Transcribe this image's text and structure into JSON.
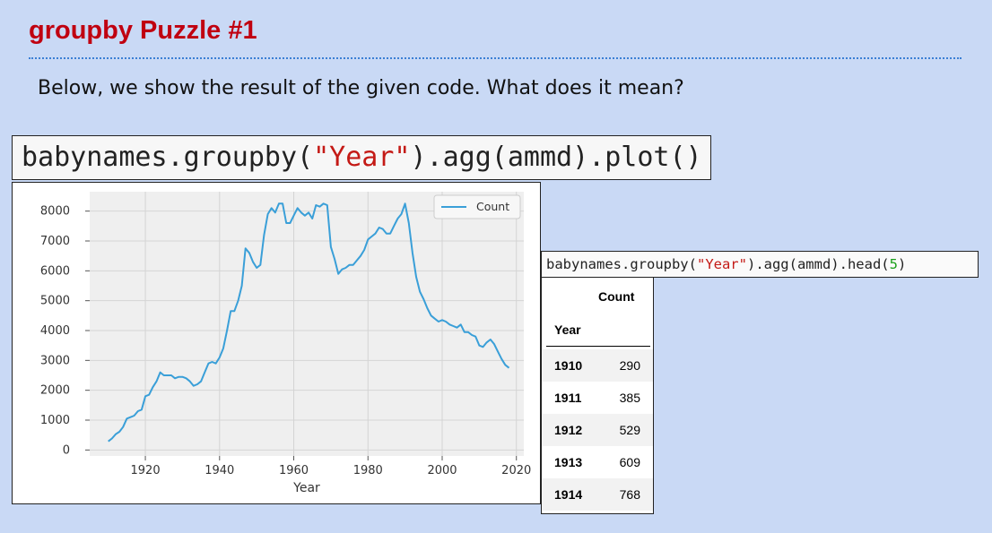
{
  "slide": {
    "title": "groupby Puzzle #1",
    "subtitle": "Below, we show the result of the given code. What does it mean?"
  },
  "code_plot": {
    "prefix": "babynames.groupby(",
    "arg": "\"Year\"",
    "suffix": ").agg(ammd).plot()"
  },
  "code_head": {
    "prefix": "babynames.groupby(",
    "arg": "\"Year\"",
    "middle": ").agg(ammd).head(",
    "num": "5",
    "suffix": ")"
  },
  "table": {
    "col_header": "Count",
    "index_header": "Year",
    "rows": [
      {
        "year": "1910",
        "count": "290"
      },
      {
        "year": "1911",
        "count": "385"
      },
      {
        "year": "1912",
        "count": "529"
      },
      {
        "year": "1913",
        "count": "609"
      },
      {
        "year": "1914",
        "count": "768"
      }
    ]
  },
  "chart_data": {
    "type": "line",
    "title": "",
    "xlabel": "Year",
    "ylabel": "",
    "xlim": [
      1905,
      2022
    ],
    "ylim": [
      -200,
      8650
    ],
    "xticks": [
      1920,
      1940,
      1960,
      1980,
      2000,
      2020
    ],
    "yticks": [
      0,
      1000,
      2000,
      3000,
      4000,
      5000,
      6000,
      7000,
      8000
    ],
    "grid": true,
    "legend_placement": "top-right",
    "series_color": "#3a9fd8",
    "series": [
      {
        "name": "Count",
        "x": [
          1910,
          1911,
          1912,
          1913,
          1914,
          1915,
          1916,
          1917,
          1918,
          1919,
          1920,
          1921,
          1922,
          1923,
          1924,
          1925,
          1926,
          1927,
          1928,
          1929,
          1930,
          1931,
          1932,
          1933,
          1934,
          1935,
          1936,
          1937,
          1938,
          1939,
          1940,
          1941,
          1942,
          1943,
          1944,
          1945,
          1946,
          1947,
          1948,
          1949,
          1950,
          1951,
          1952,
          1953,
          1954,
          1955,
          1956,
          1957,
          1958,
          1959,
          1960,
          1961,
          1962,
          1963,
          1964,
          1965,
          1966,
          1967,
          1968,
          1969,
          1970,
          1971,
          1972,
          1973,
          1974,
          1975,
          1976,
          1977,
          1978,
          1979,
          1980,
          1981,
          1982,
          1983,
          1984,
          1985,
          1986,
          1987,
          1988,
          1989,
          1990,
          1991,
          1992,
          1993,
          1994,
          1995,
          1996,
          1997,
          1998,
          1999,
          2000,
          2001,
          2002,
          2003,
          2004,
          2005,
          2006,
          2007,
          2008,
          2009,
          2010,
          2011,
          2012,
          2013,
          2014,
          2015,
          2016,
          2017,
          2018
        ],
        "values": [
          290,
          385,
          529,
          609,
          768,
          1050,
          1100,
          1150,
          1300,
          1350,
          1800,
          1850,
          2100,
          2300,
          2600,
          2500,
          2500,
          2500,
          2400,
          2450,
          2450,
          2400,
          2300,
          2150,
          2200,
          2300,
          2600,
          2900,
          2950,
          2900,
          3100,
          3400,
          4000,
          4650,
          4650,
          5000,
          5500,
          6750,
          6600,
          6300,
          6100,
          6200,
          7200,
          7900,
          8100,
          7950,
          8250,
          8250,
          7600,
          7600,
          7850,
          8100,
          7950,
          7850,
          7950,
          7750,
          8200,
          8150,
          8250,
          8200,
          6800,
          6400,
          5900,
          6050,
          6100,
          6200,
          6200,
          6350,
          6500,
          6700,
          7050,
          7150,
          7250,
          7450,
          7400,
          7250,
          7250,
          7500,
          7750,
          7900,
          8250,
          7600,
          6600,
          5800,
          5300,
          5050,
          4750,
          4500,
          4400,
          4300,
          4350,
          4300,
          4200,
          4150,
          4100,
          4200,
          3950,
          3950,
          3850,
          3800,
          3500,
          3450,
          3600,
          3700,
          3550,
          3300,
          3050,
          2850,
          2750
        ]
      }
    ]
  }
}
